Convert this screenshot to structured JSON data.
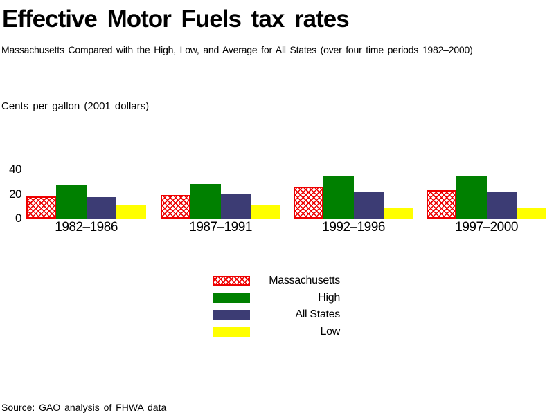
{
  "header": {
    "title": "Effective Motor Fuels tax rates",
    "subtitle": "Massachusetts Compared with the High, Low, and Average for All States (over four time periods 1982–2000)"
  },
  "chart": {
    "unit_label": "Cents per gallon (2001 dollars)"
  },
  "source_note": "Source: GAO analysis of FHWA data",
  "colors": {
    "massachusetts": "#ee0000",
    "high": "#008000",
    "all_states": "#3c3c74",
    "low": "#ffff00",
    "text": "#000000",
    "background": "#ffffff"
  },
  "chart_data": {
    "type": "bar",
    "title": "Effective Motor Fuels tax rates",
    "subtitle": "Massachusetts Compared with the High, Low, and Average for All States (over four time periods 1982–2000)",
    "ylabel": "Cents per gallon (2001 dollars)",
    "xlabel": "",
    "categories": [
      "1982–1986",
      "1987–1991",
      "1992–1996",
      "1997–2000"
    ],
    "yticks": [
      0,
      20,
      40
    ],
    "ylim": [
      0,
      45
    ],
    "grid": false,
    "legend_position": "below-center",
    "series": [
      {
        "name": "Massachusetts",
        "key": "massachusetts",
        "pattern": "red diagonal crosshatch on white",
        "values": [
          18,
          19,
          26,
          23
        ]
      },
      {
        "name": "High",
        "key": "high",
        "pattern": "solid green",
        "values": [
          27.5,
          28,
          34.5,
          35
        ]
      },
      {
        "name": "All States",
        "key": "all_states",
        "pattern": "solid dark blue",
        "values": [
          17.5,
          19.5,
          21.5,
          21.5
        ]
      },
      {
        "name": "Low",
        "key": "low",
        "pattern": "solid yellow",
        "values": [
          11,
          10.5,
          9,
          8.5
        ]
      }
    ]
  }
}
